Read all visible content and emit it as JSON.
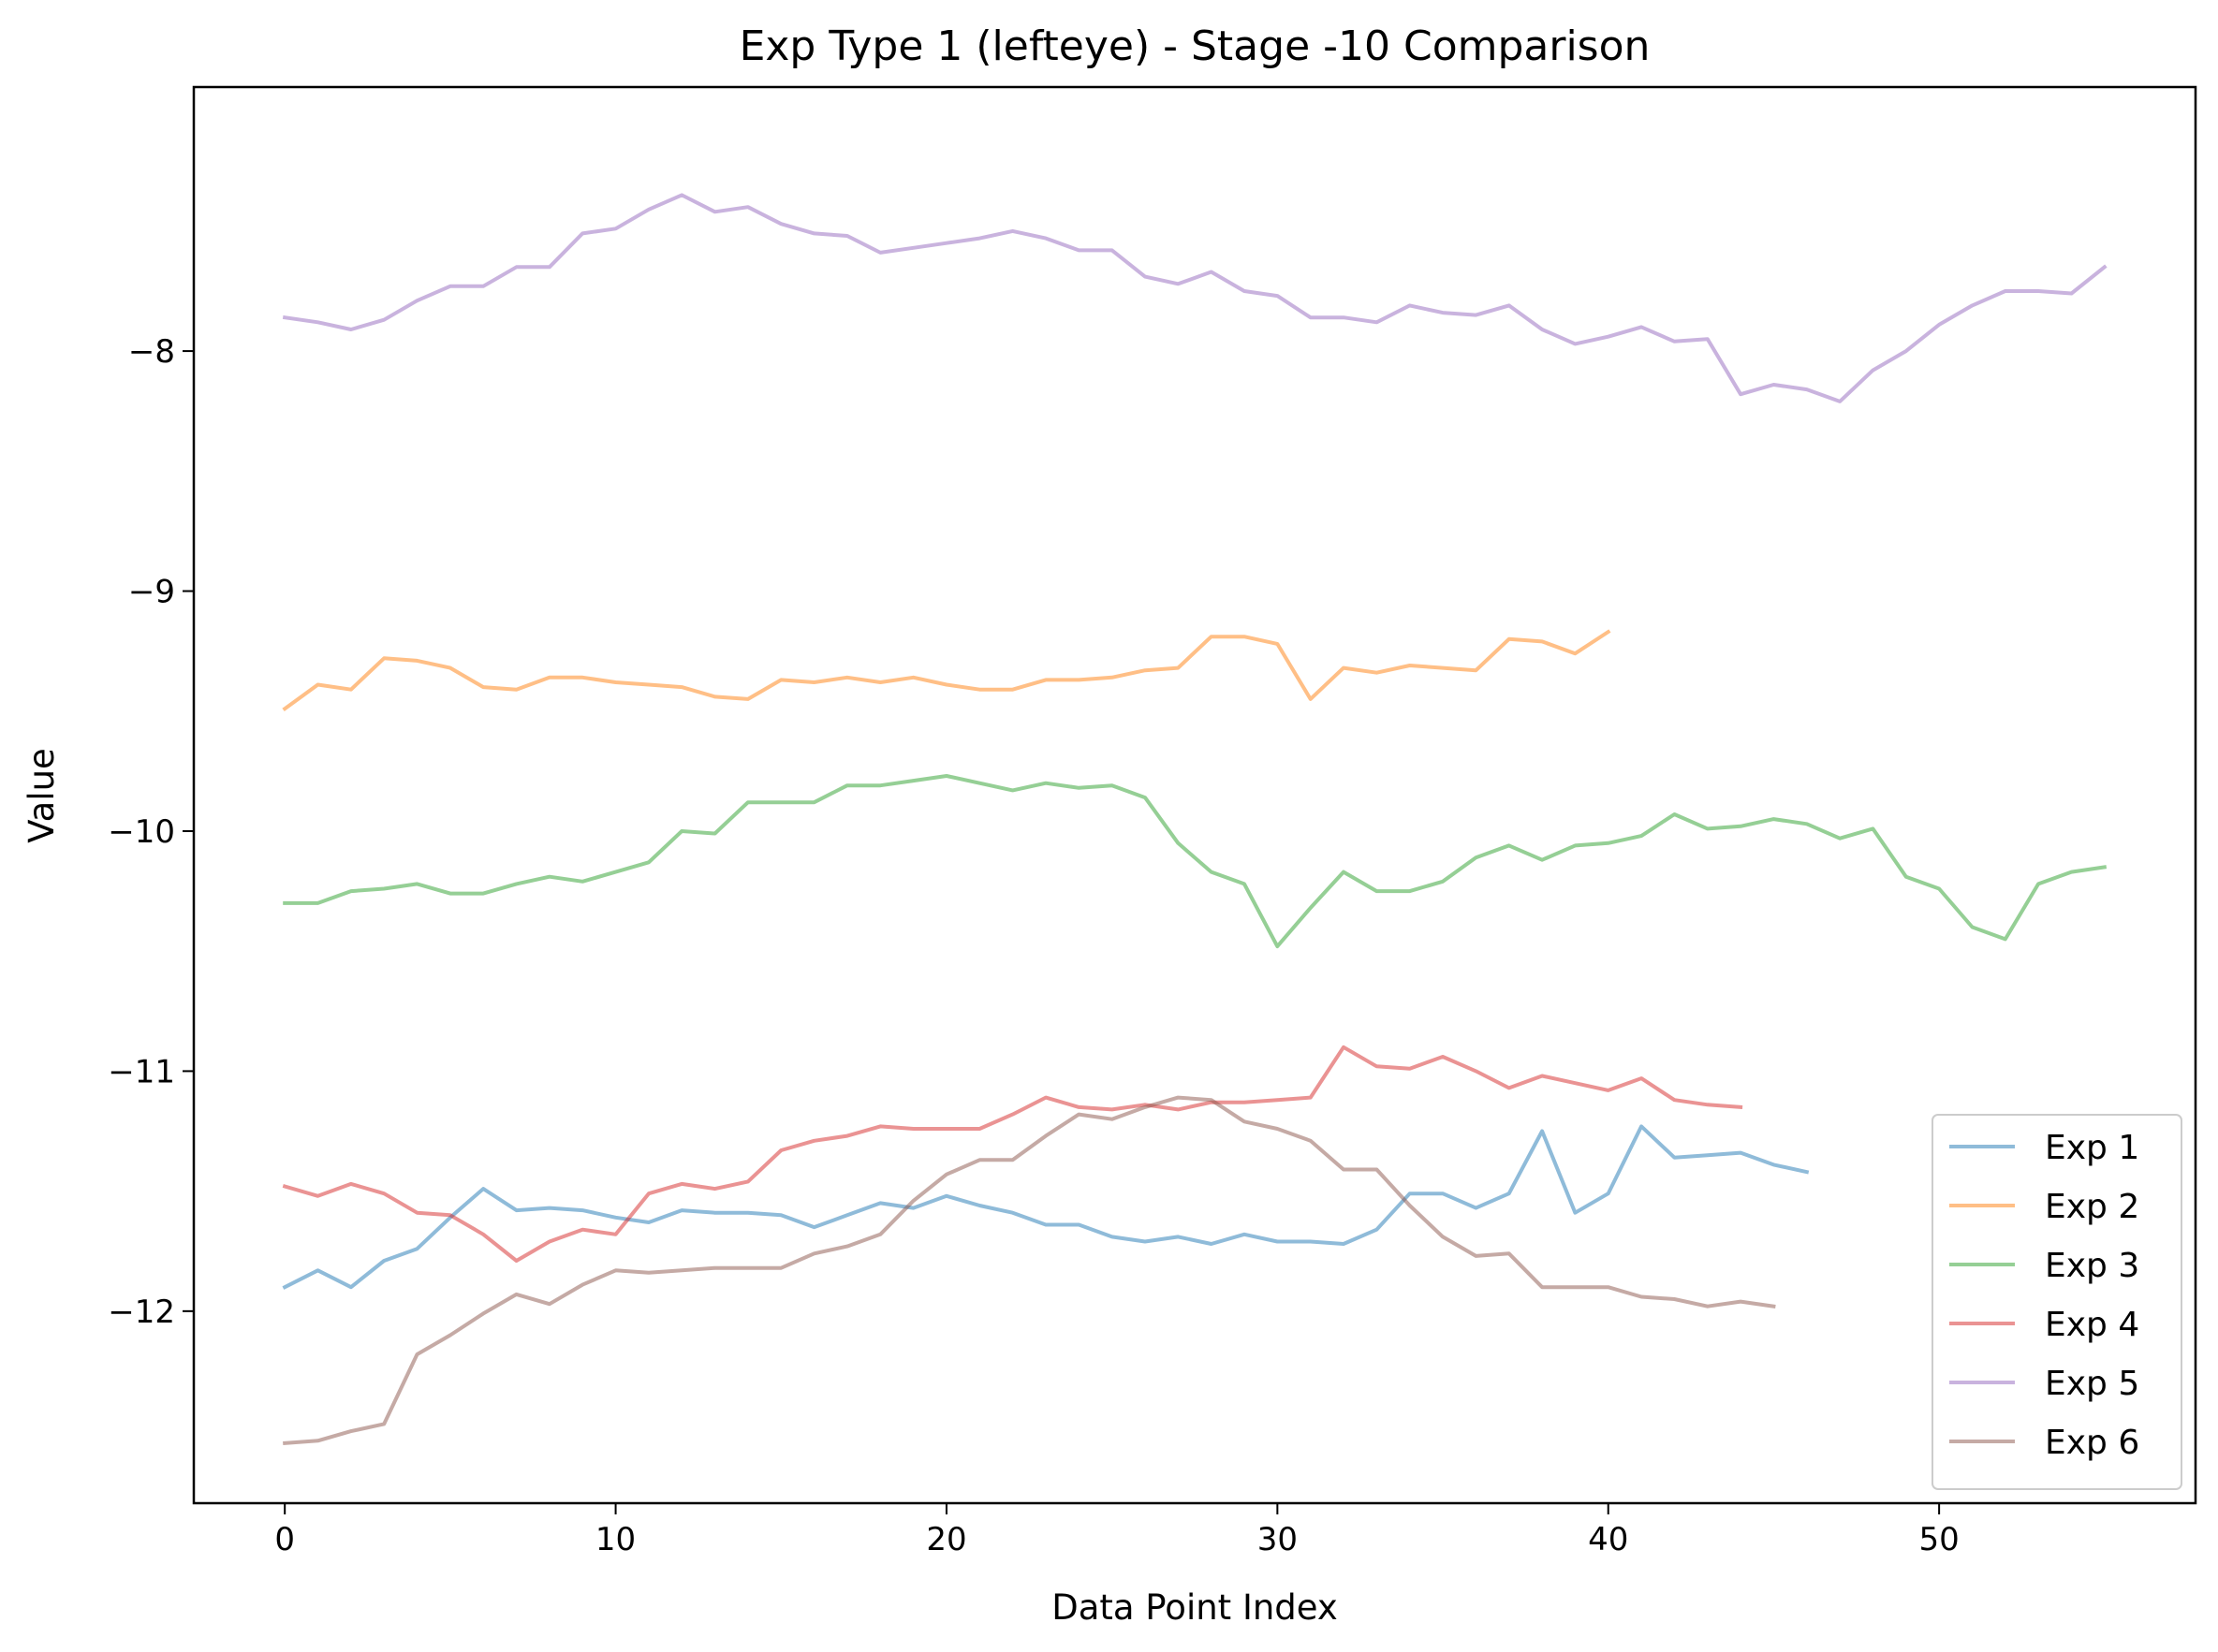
{
  "chart_data": {
    "type": "line",
    "title": "Exp Type 1 (lefteye) - Stage -10 Comparison",
    "xlabel": "Data Point Index",
    "ylabel": "Value",
    "xlim": [
      -2.75,
      57.75
    ],
    "ylim": [
      -12.8,
      -6.9
    ],
    "xticks": [
      0,
      10,
      20,
      30,
      40,
      50
    ],
    "yticks": [
      -12,
      -11,
      -10,
      -9,
      -8
    ],
    "xtick_labels": [
      "0",
      "10",
      "20",
      "30",
      "40",
      "50"
    ],
    "ytick_labels": [
      "−12",
      "−11",
      "−10",
      "−9",
      "−8"
    ],
    "grid": false,
    "legend_position": "lower-right",
    "series": [
      {
        "name": "Exp 1",
        "color": "#1f77b4",
        "values": [
          -11.9,
          -11.83,
          -11.9,
          -11.79,
          -11.74,
          -11.61,
          -11.49,
          -11.58,
          -11.57,
          -11.58,
          -11.61,
          -11.63,
          -11.58,
          -11.59,
          -11.59,
          -11.6,
          -11.65,
          -11.6,
          -11.55,
          -11.57,
          -11.52,
          -11.56,
          -11.59,
          -11.64,
          -11.64,
          -11.69,
          -11.71,
          -11.69,
          -11.72,
          -11.68,
          -11.71,
          -11.71,
          -11.72,
          -11.66,
          -11.51,
          -11.51,
          -11.57,
          -11.51,
          -11.25,
          -11.59,
          -11.51,
          -11.23,
          -11.36,
          -11.35,
          -11.34,
          -11.39,
          -11.42
        ]
      },
      {
        "name": "Exp 2",
        "color": "#ff7f0e",
        "values": [
          -9.49,
          -9.39,
          -9.41,
          -9.28,
          -9.29,
          -9.32,
          -9.4,
          -9.41,
          -9.36,
          -9.36,
          -9.38,
          -9.39,
          -9.4,
          -9.44,
          -9.45,
          -9.37,
          -9.38,
          -9.36,
          -9.38,
          -9.36,
          -9.39,
          -9.41,
          -9.41,
          -9.37,
          -9.37,
          -9.36,
          -9.33,
          -9.32,
          -9.19,
          -9.19,
          -9.22,
          -9.45,
          -9.32,
          -9.34,
          -9.31,
          -9.32,
          -9.33,
          -9.2,
          -9.21,
          -9.26,
          -9.17
        ]
      },
      {
        "name": "Exp 3",
        "color": "#2ca02c",
        "values": [
          -10.3,
          -10.3,
          -10.25,
          -10.24,
          -10.22,
          -10.26,
          -10.26,
          -10.22,
          -10.19,
          -10.21,
          -10.17,
          -10.13,
          -10.0,
          -10.01,
          -9.88,
          -9.88,
          -9.88,
          -9.81,
          -9.81,
          -9.79,
          -9.77,
          -9.8,
          -9.83,
          -9.8,
          -9.82,
          -9.81,
          -9.86,
          -10.05,
          -10.17,
          -10.22,
          -10.48,
          -10.32,
          -10.17,
          -10.25,
          -10.25,
          -10.21,
          -10.11,
          -10.06,
          -10.12,
          -10.06,
          -10.05,
          -10.02,
          -9.93,
          -9.99,
          -9.98,
          -9.95,
          -9.97,
          -10.03,
          -9.99,
          -10.19,
          -10.24,
          -10.4,
          -10.45,
          -10.22,
          -10.17,
          -10.15
        ]
      },
      {
        "name": "Exp 4",
        "color": "#d62728",
        "values": [
          -11.48,
          -11.52,
          -11.47,
          -11.51,
          -11.59,
          -11.6,
          -11.68,
          -11.79,
          -11.71,
          -11.66,
          -11.68,
          -11.51,
          -11.47,
          -11.49,
          -11.46,
          -11.33,
          -11.29,
          -11.27,
          -11.23,
          -11.24,
          -11.24,
          -11.24,
          -11.18,
          -11.11,
          -11.15,
          -11.16,
          -11.14,
          -11.16,
          -11.13,
          -11.13,
          -11.12,
          -11.11,
          -10.9,
          -10.98,
          -10.99,
          -10.94,
          -11.0,
          -11.07,
          -11.02,
          -11.05,
          -11.08,
          -11.03,
          -11.12,
          -11.14,
          -11.15
        ]
      },
      {
        "name": "Exp 5",
        "color": "#9467bd",
        "values": [
          -7.86,
          -7.88,
          -7.91,
          -7.87,
          -7.79,
          -7.73,
          -7.73,
          -7.65,
          -7.65,
          -7.51,
          -7.49,
          -7.41,
          -7.35,
          -7.42,
          -7.4,
          -7.47,
          -7.51,
          -7.52,
          -7.59,
          -7.57,
          -7.55,
          -7.53,
          -7.5,
          -7.53,
          -7.58,
          -7.58,
          -7.69,
          -7.72,
          -7.67,
          -7.75,
          -7.77,
          -7.86,
          -7.86,
          -7.88,
          -7.81,
          -7.84,
          -7.85,
          -7.81,
          -7.91,
          -7.97,
          -7.94,
          -7.9,
          -7.96,
          -7.95,
          -8.18,
          -8.14,
          -8.16,
          -8.21,
          -8.08,
          -8.0,
          -7.89,
          -7.81,
          -7.75,
          -7.75,
          -7.76,
          -7.65
        ]
      },
      {
        "name": "Exp 6",
        "color": "#8c564b",
        "values": [
          -12.55,
          -12.54,
          -12.5,
          -12.47,
          -12.18,
          -12.1,
          -12.01,
          -11.93,
          -11.97,
          -11.89,
          -11.83,
          -11.84,
          -11.83,
          -11.82,
          -11.82,
          -11.82,
          -11.76,
          -11.73,
          -11.68,
          -11.54,
          -11.43,
          -11.37,
          -11.37,
          -11.27,
          -11.18,
          -11.2,
          -11.15,
          -11.11,
          -11.12,
          -11.21,
          -11.24,
          -11.29,
          -11.41,
          -11.41,
          -11.56,
          -11.69,
          -11.77,
          -11.76,
          -11.9,
          -11.9,
          -11.9,
          -11.94,
          -11.95,
          -11.98,
          -11.96,
          -11.98
        ]
      }
    ]
  }
}
